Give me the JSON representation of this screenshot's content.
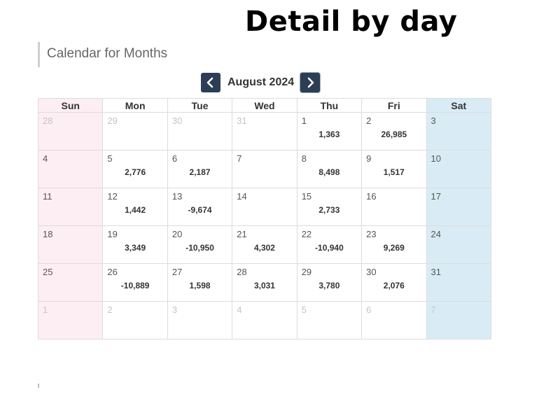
{
  "headline": "Detail by day",
  "section_title": "Calendar for Months",
  "month_label": "August 2024",
  "icons": {
    "prev": "chevron-left-icon",
    "next": "chevron-right-icon"
  },
  "colors": {
    "sunday_bg": "#fdeef3",
    "saturday_bg": "#d9ecf5",
    "nav_button": "#2c3e55"
  },
  "weekdays": [
    "Sun",
    "Mon",
    "Tue",
    "Wed",
    "Thu",
    "Fri",
    "Sat"
  ],
  "weeks": [
    [
      {
        "day": "28",
        "value": "",
        "other": true
      },
      {
        "day": "29",
        "value": "",
        "other": true
      },
      {
        "day": "30",
        "value": "",
        "other": true
      },
      {
        "day": "31",
        "value": "",
        "other": true
      },
      {
        "day": "1",
        "value": "1,363"
      },
      {
        "day": "2",
        "value": "26,985"
      },
      {
        "day": "3",
        "value": ""
      }
    ],
    [
      {
        "day": "4",
        "value": ""
      },
      {
        "day": "5",
        "value": "2,776"
      },
      {
        "day": "6",
        "value": "2,187"
      },
      {
        "day": "7",
        "value": ""
      },
      {
        "day": "8",
        "value": "8,498"
      },
      {
        "day": "9",
        "value": "1,517"
      },
      {
        "day": "10",
        "value": ""
      }
    ],
    [
      {
        "day": "11",
        "value": ""
      },
      {
        "day": "12",
        "value": "1,442"
      },
      {
        "day": "13",
        "value": "-9,674"
      },
      {
        "day": "14",
        "value": ""
      },
      {
        "day": "15",
        "value": "2,733"
      },
      {
        "day": "16",
        "value": ""
      },
      {
        "day": "17",
        "value": ""
      }
    ],
    [
      {
        "day": "18",
        "value": ""
      },
      {
        "day": "19",
        "value": "3,349"
      },
      {
        "day": "20",
        "value": "-10,950"
      },
      {
        "day": "21",
        "value": "4,302"
      },
      {
        "day": "22",
        "value": "-10,940"
      },
      {
        "day": "23",
        "value": "9,269"
      },
      {
        "day": "24",
        "value": ""
      }
    ],
    [
      {
        "day": "25",
        "value": ""
      },
      {
        "day": "26",
        "value": "-10,889"
      },
      {
        "day": "27",
        "value": "1,598"
      },
      {
        "day": "28",
        "value": "3,031"
      },
      {
        "day": "29",
        "value": "3,780"
      },
      {
        "day": "30",
        "value": "2,076"
      },
      {
        "day": "31",
        "value": ""
      }
    ],
    [
      {
        "day": "1",
        "value": "",
        "other": true
      },
      {
        "day": "2",
        "value": "",
        "other": true
      },
      {
        "day": "3",
        "value": "",
        "other": true
      },
      {
        "day": "4",
        "value": "",
        "other": true
      },
      {
        "day": "5",
        "value": "",
        "other": true
      },
      {
        "day": "6",
        "value": "",
        "other": true
      },
      {
        "day": "7",
        "value": "",
        "other": true
      }
    ]
  ]
}
